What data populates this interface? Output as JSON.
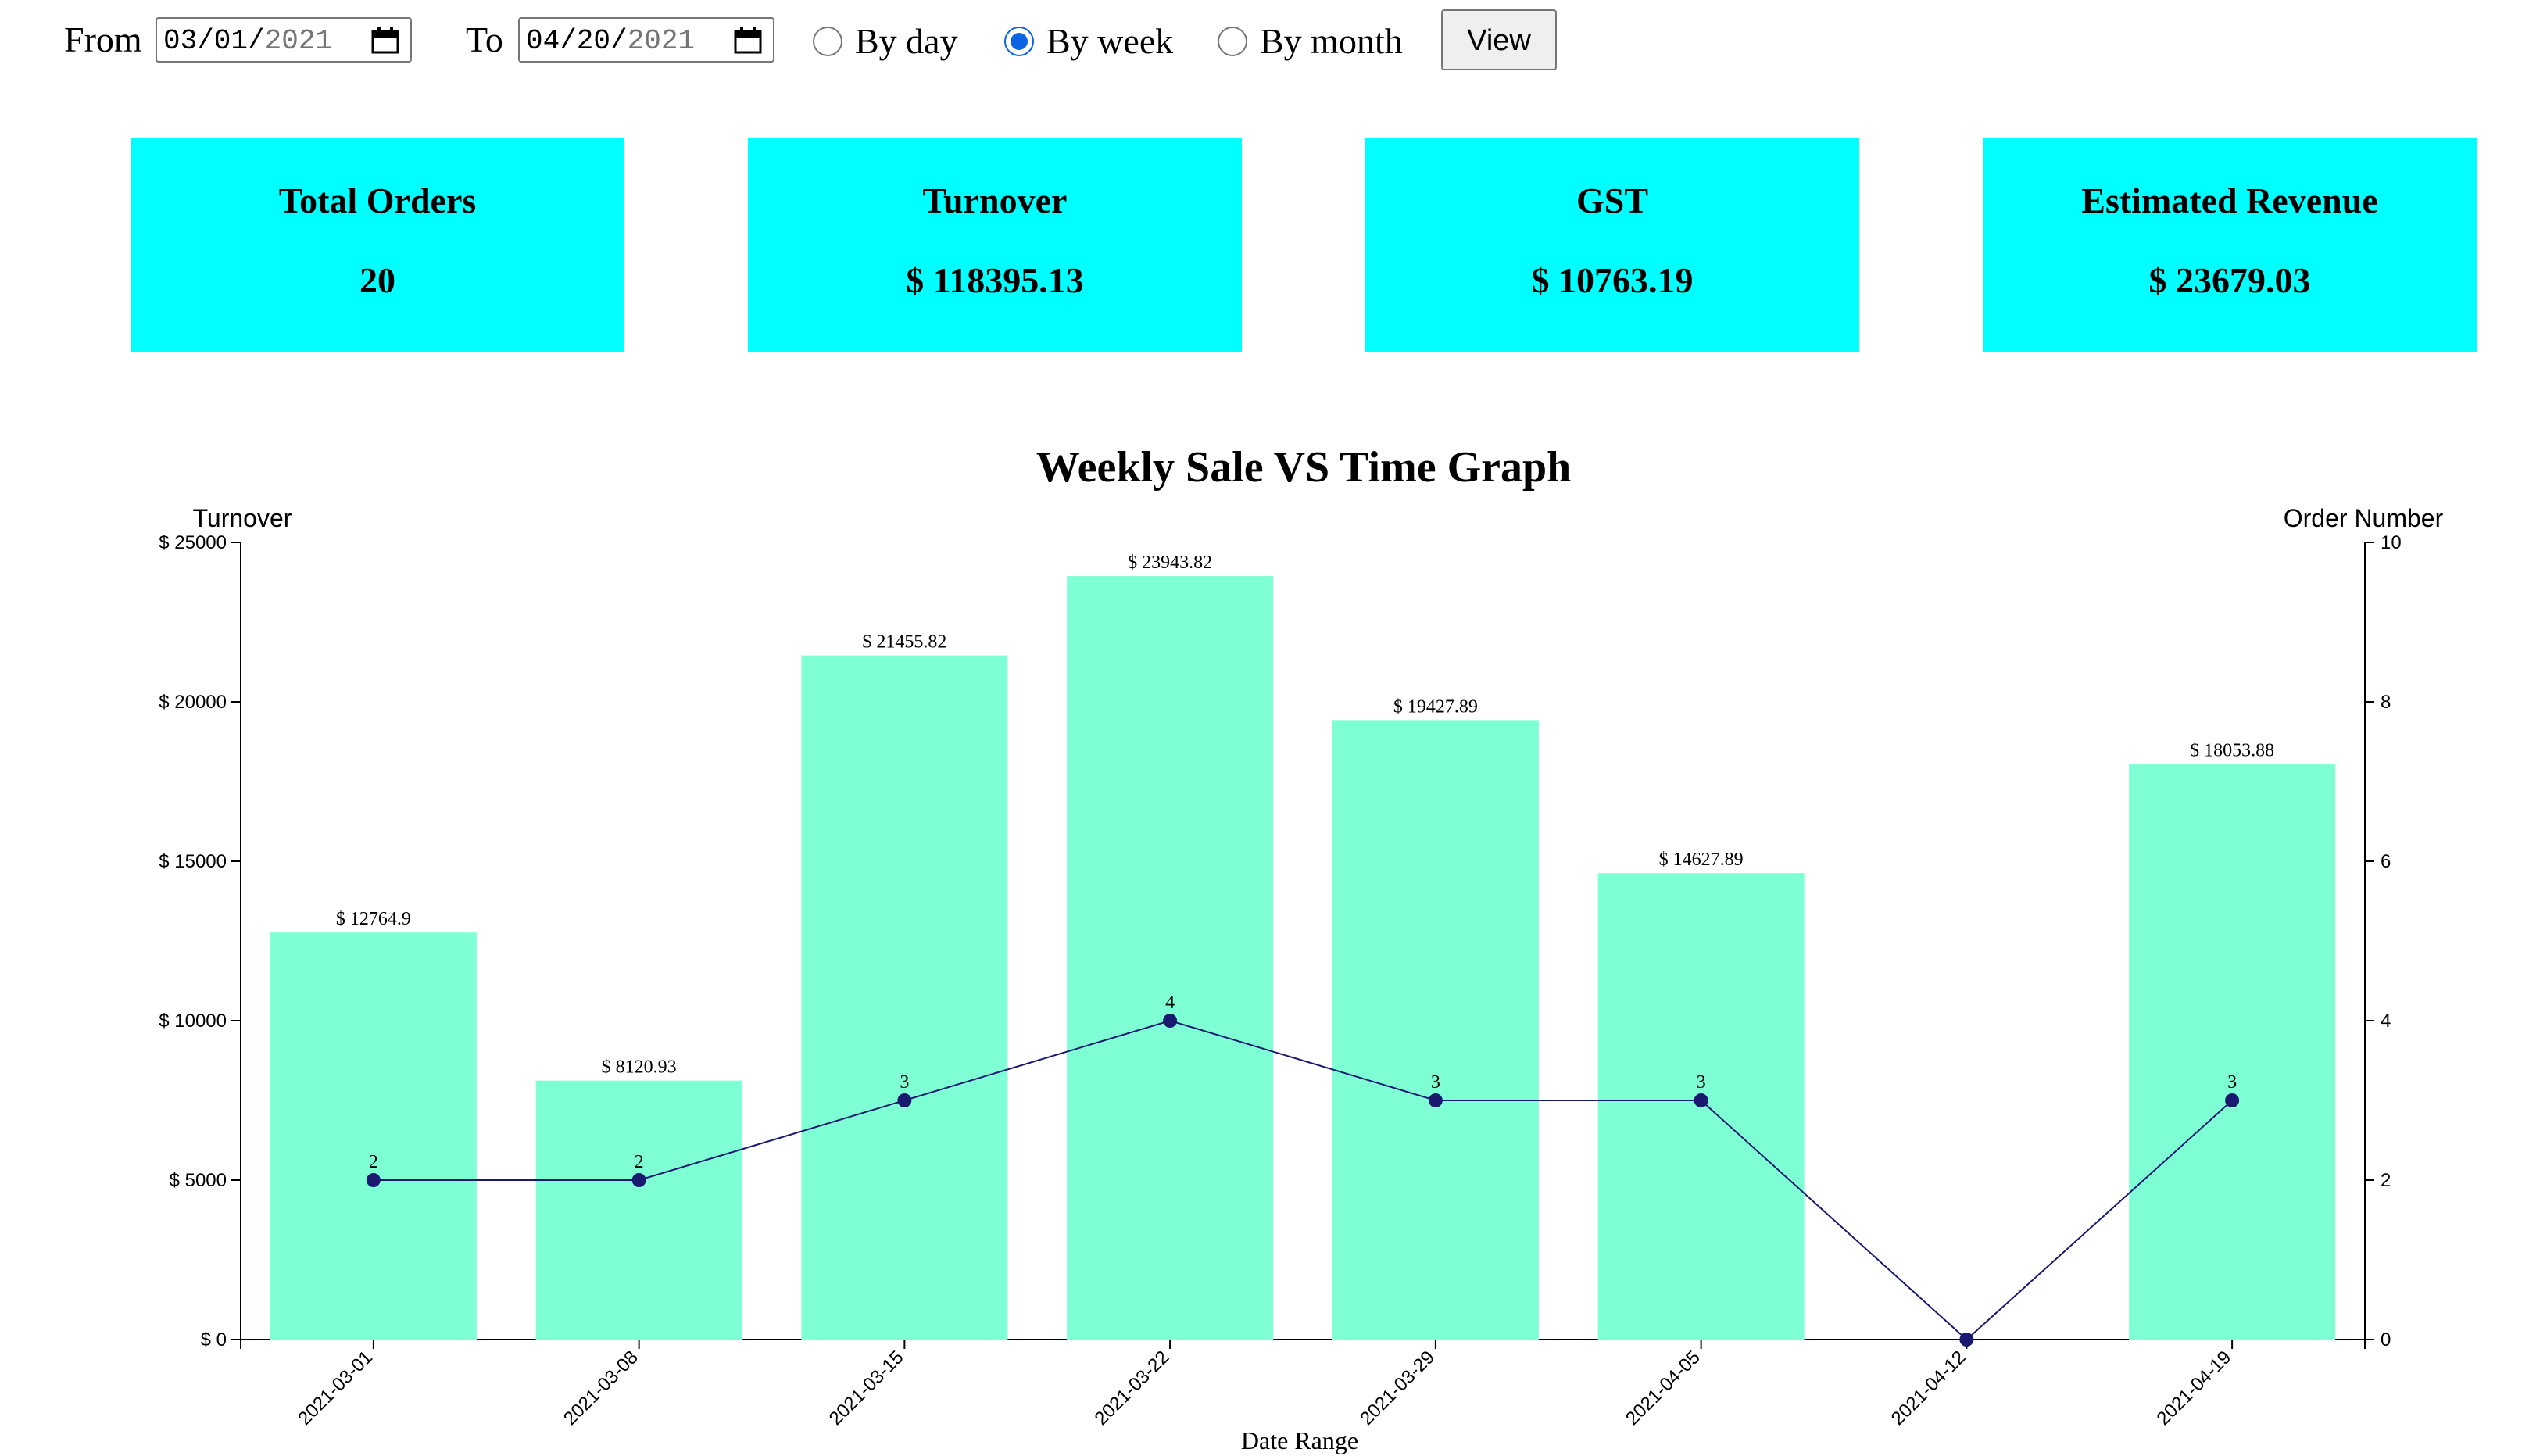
{
  "controls": {
    "from_label": "From",
    "from_date": {
      "mmdd": "03/01/",
      "year": "2021"
    },
    "to_label": "To",
    "to_date": {
      "mmdd": "04/20/",
      "year": "2021"
    },
    "period_options": [
      {
        "label": "By day",
        "checked": false
      },
      {
        "label": "By week",
        "checked": true
      },
      {
        "label": "By month",
        "checked": false
      }
    ],
    "view_button": "View"
  },
  "summary": [
    {
      "title": "Total Orders",
      "value": "20"
    },
    {
      "title": "Turnover",
      "value": "$ 118395.13"
    },
    {
      "title": "GST",
      "value": "$ 10763.19"
    },
    {
      "title": "Estimated Revenue",
      "value": "$ 23679.03"
    }
  ],
  "colors": {
    "card_bg": "#00ffff",
    "bar": "#7fffd4",
    "line": "#191970",
    "radio_checked": "#0a64e4"
  },
  "chart_data": {
    "type": "bar",
    "title": "Weekly Sale VS Time Graph",
    "xlabel": "Date Range",
    "ylabel": "Turnover",
    "y2label": "Order Number",
    "categories": [
      "2021-03-01",
      "2021-03-08",
      "2021-03-15",
      "2021-03-22",
      "2021-03-29",
      "2021-04-05",
      "2021-04-12",
      "2021-04-19"
    ],
    "series": [
      {
        "name": "Turnover",
        "type": "bar",
        "axis": "left",
        "values": [
          12764.9,
          8120.93,
          21455.82,
          23943.82,
          19427.89,
          14627.89,
          0,
          18053.88
        ],
        "labels": [
          "$ 12764.9",
          "$ 8120.93",
          "$ 21455.82",
          "$ 23943.82",
          "$ 19427.89",
          "$ 14627.89",
          "",
          "$ 18053.88"
        ]
      },
      {
        "name": "Order Number",
        "type": "line",
        "axis": "right",
        "values": [
          2,
          2,
          3,
          4,
          3,
          3,
          0,
          3
        ],
        "labels": [
          "2",
          "2",
          "3",
          "4",
          "3",
          "3",
          "",
          "3"
        ]
      }
    ],
    "ylim": [
      0,
      25000
    ],
    "yticks": [
      0,
      5000,
      10000,
      15000,
      20000,
      25000
    ],
    "ytick_labels": [
      "$ 0",
      "$ 5000",
      "$ 10000",
      "$ 15000",
      "$ 20000",
      "$ 25000"
    ],
    "y2lim": [
      0,
      10
    ],
    "y2ticks": [
      0,
      2,
      4,
      6,
      8,
      10
    ],
    "y2tick_labels": [
      "0",
      "2",
      "4",
      "6",
      "8",
      "10"
    ]
  }
}
